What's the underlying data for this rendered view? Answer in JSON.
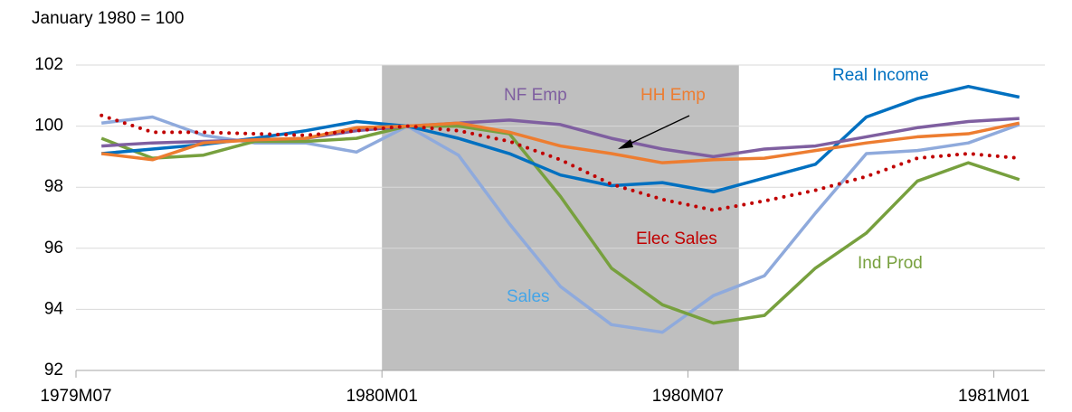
{
  "chart_data": {
    "type": "line",
    "subtitle": "January 1980 = 100",
    "x": [
      0.5,
      1.5,
      2.5,
      3.5,
      4.5,
      5.5,
      6.5,
      7.5,
      8.5,
      9.5,
      10.5,
      11.5,
      12.5,
      13.5,
      14.5,
      15.5,
      16.5,
      17.5,
      18.5
    ],
    "xlim": [
      0,
      19
    ],
    "xticks": [
      {
        "value": 0,
        "label": "1979M07"
      },
      {
        "value": 6,
        "label": "1980M01"
      },
      {
        "value": 12,
        "label": "1980M07"
      },
      {
        "value": 18,
        "label": "1981M01"
      }
    ],
    "ylim": [
      92,
      102
    ],
    "yticks": [
      92,
      94,
      96,
      98,
      100,
      102
    ],
    "grid": true,
    "recession": [
      6,
      13
    ],
    "recession_color": "#bfbfbf",
    "series": [
      {
        "name": "Sales",
        "color": "#8faadc",
        "values": [
          100.1,
          100.3,
          99.7,
          99.45,
          99.45,
          99.15,
          100.0,
          99.05,
          96.8,
          94.75,
          93.5,
          93.25,
          94.45,
          95.1,
          97.15,
          99.1,
          99.2,
          99.45,
          100.05
        ]
      },
      {
        "name": "Ind Prod",
        "color": "#77a03e",
        "values": [
          99.6,
          98.95,
          99.05,
          99.5,
          99.5,
          99.6,
          100.0,
          100.0,
          99.75,
          97.7,
          95.35,
          94.15,
          93.55,
          93.8,
          95.35,
          96.5,
          98.2,
          98.8,
          98.25
        ]
      },
      {
        "name": "Real Income",
        "color": "#0070c0",
        "values": [
          99.1,
          99.25,
          99.4,
          99.6,
          99.85,
          100.15,
          100.0,
          99.6,
          99.1,
          98.4,
          98.05,
          98.15,
          97.85,
          98.3,
          98.75,
          100.3,
          100.9,
          101.3,
          100.95
        ]
      },
      {
        "name": "NF Emp",
        "color": "#7f5fa0",
        "values": [
          99.35,
          99.45,
          99.5,
          99.55,
          99.6,
          99.85,
          100.0,
          100.1,
          100.2,
          100.05,
          99.6,
          99.25,
          99.0,
          99.25,
          99.35,
          99.65,
          99.95,
          100.15,
          100.25
        ]
      },
      {
        "name": "HH Emp",
        "color": "#ed7d31",
        "values": [
          99.1,
          98.9,
          99.45,
          99.55,
          99.6,
          99.95,
          100.0,
          100.1,
          99.8,
          99.35,
          99.1,
          98.8,
          98.9,
          98.95,
          99.2,
          99.45,
          99.65,
          99.75,
          100.1
        ]
      },
      {
        "name": "Elec Sales",
        "color": "#c00000",
        "dotted": true,
        "values": [
          100.35,
          99.8,
          99.8,
          99.75,
          99.7,
          99.85,
          100.0,
          99.85,
          99.5,
          98.9,
          98.1,
          97.6,
          97.25,
          97.55,
          97.9,
          98.35,
          98.95,
          99.1,
          98.95
        ]
      }
    ]
  }
}
